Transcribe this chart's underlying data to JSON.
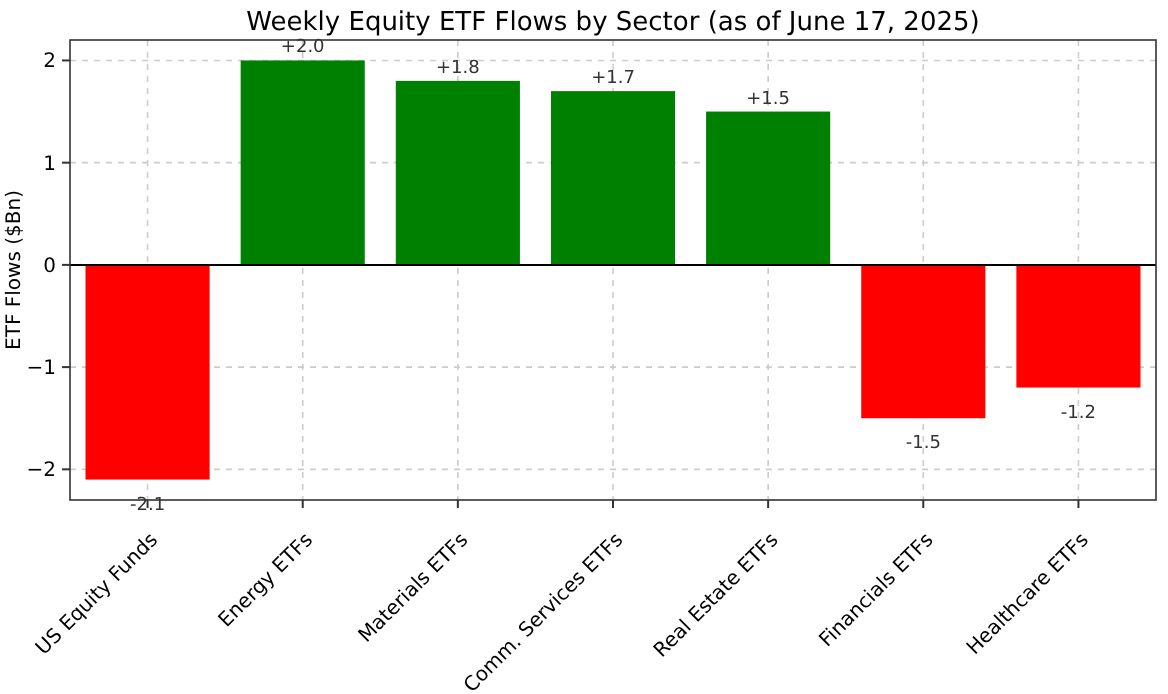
{
  "chart_data": {
    "type": "bar",
    "title": "Weekly Equity ETF Flows by Sector (as of June 17, 2025)",
    "ylabel": "ETF Flows ($Bn)",
    "categories": [
      "US Equity Funds",
      "Energy ETFs",
      "Materials ETFs",
      "Comm. Services ETFs",
      "Real Estate ETFs",
      "Financials ETFs",
      "Healthcare ETFs"
    ],
    "values": [
      -2.1,
      2.0,
      1.8,
      1.7,
      1.5,
      -1.5,
      -1.2
    ],
    "colors": [
      "#ff0000",
      "#008000",
      "#008000",
      "#008000",
      "#008000",
      "#ff0000",
      "#ff0000"
    ],
    "value_labels": [
      "-2.1",
      "+2.0",
      "+1.8",
      "+1.7",
      "+1.5",
      "-1.5",
      "-1.2"
    ],
    "ylim": [
      -2.3,
      2.2
    ],
    "yticks": [
      {
        "value": -2,
        "label": "−2"
      },
      {
        "value": -1,
        "label": "−1"
      },
      0,
      1,
      2
    ],
    "grid": true,
    "ref_lines": [
      {
        "axis": "y",
        "value": 0,
        "color": "#000000"
      }
    ]
  }
}
